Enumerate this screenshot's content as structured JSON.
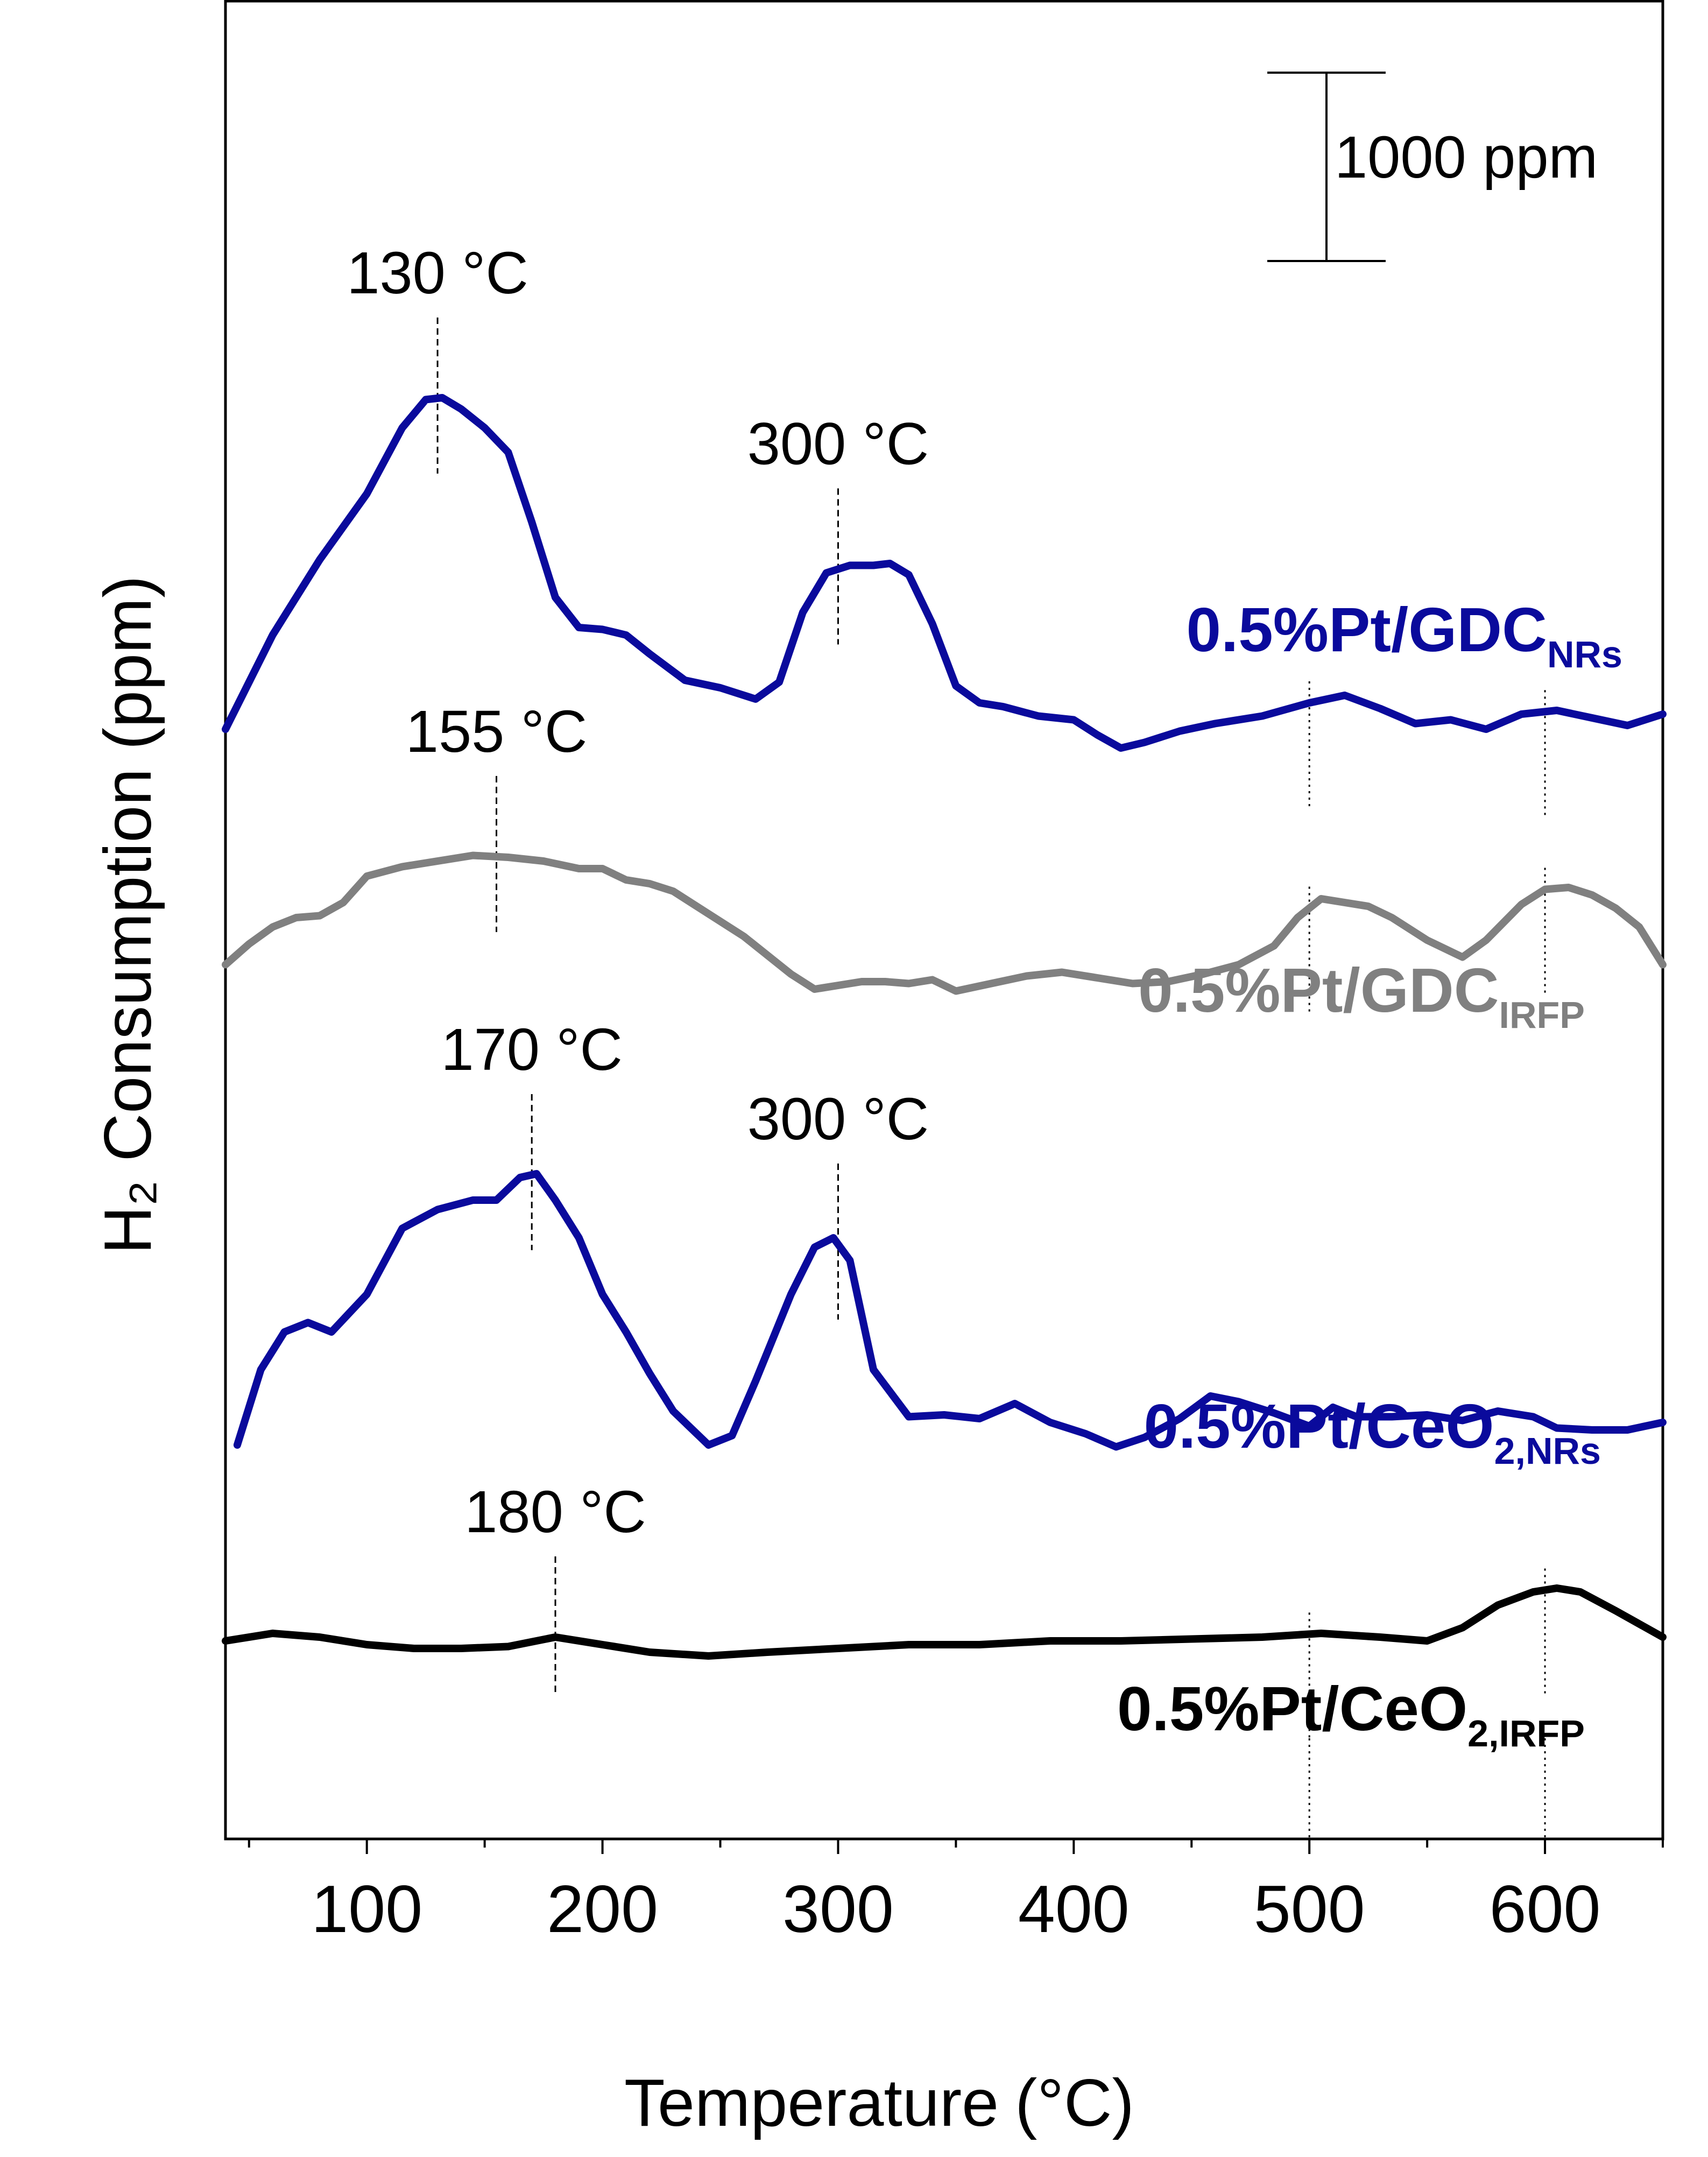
{
  "chart_data": {
    "type": "line",
    "title": "",
    "xlabel": "Temperature",
    "xlabel_unit": "(°C)",
    "ylabel": "H₂ Consumption (ppm)",
    "xlim": [
      40,
      650
    ],
    "x_ticks": [
      100,
      200,
      300,
      400,
      500,
      600
    ],
    "x_tick_labels": [
      "100",
      "200",
      "300",
      "400",
      "500",
      "600"
    ],
    "y_tick_labels": "none",
    "grid": false,
    "scale_bar": {
      "label": "1000 ppm",
      "value_ppm": 1000
    },
    "series": [
      {
        "name": "0.5%Pt/GDC",
        "subscript": "NRs",
        "color": "#0a0a9c",
        "offset_ppm": 5700,
        "x": [
          40,
          60,
          80,
          100,
          115,
          125,
          132,
          140,
          150,
          160,
          170,
          180,
          190,
          200,
          210,
          220,
          235,
          250,
          265,
          275,
          285,
          295,
          305,
          315,
          322,
          330,
          340,
          350,
          360,
          370,
          385,
          400,
          410,
          420,
          430,
          445,
          460,
          480,
          500,
          515,
          530,
          545,
          560,
          575,
          590,
          605,
          620,
          635,
          650
        ],
        "values": [
          0,
          500,
          900,
          1250,
          1600,
          1750,
          1760,
          1700,
          1600,
          1470,
          1100,
          700,
          540,
          530,
          500,
          400,
          260,
          220,
          160,
          250,
          620,
          830,
          870,
          870,
          880,
          820,
          560,
          230,
          140,
          120,
          70,
          50,
          -30,
          -100,
          -70,
          -10,
          30,
          70,
          140,
          180,
          110,
          30,
          50,
          0,
          80,
          100,
          60,
          20,
          80
        ]
      },
      {
        "name": "0.5%Pt/GDC",
        "subscript": "IRFP",
        "color": "#808080",
        "offset_ppm": 4400,
        "x": [
          40,
          50,
          60,
          70,
          80,
          90,
          100,
          115,
          130,
          145,
          160,
          175,
          190,
          200,
          210,
          220,
          230,
          245,
          260,
          270,
          280,
          290,
          300,
          310,
          320,
          330,
          340,
          350,
          365,
          380,
          395,
          410,
          425,
          440,
          455,
          470,
          485,
          495,
          505,
          515,
          525,
          535,
          550,
          565,
          575,
          590,
          600,
          610,
          620,
          630,
          640,
          650
        ],
        "values": [
          50,
          160,
          250,
          300,
          310,
          380,
          520,
          570,
          600,
          630,
          620,
          600,
          560,
          560,
          500,
          480,
          440,
          320,
          200,
          100,
          0,
          -80,
          -60,
          -40,
          -40,
          -50,
          -30,
          -90,
          -50,
          -10,
          10,
          -20,
          -50,
          -40,
          0,
          50,
          150,
          300,
          400,
          380,
          360,
          300,
          180,
          90,
          180,
          370,
          450,
          460,
          420,
          350,
          250,
          50
        ]
      },
      {
        "name": "0.5%Pt/CeO",
        "subscript": "2,NRs",
        "color": "#0a0a9c",
        "offset_ppm": 1900,
        "x": [
          45,
          55,
          65,
          75,
          85,
          100,
          115,
          130,
          145,
          155,
          165,
          172,
          180,
          190,
          200,
          210,
          220,
          230,
          245,
          255,
          265,
          280,
          290,
          298,
          305,
          315,
          330,
          345,
          360,
          375,
          390,
          405,
          418,
          430,
          445,
          458,
          470,
          485,
          500,
          510,
          520,
          535,
          550,
          565,
          580,
          595,
          605,
          620,
          635,
          650
        ],
        "values": [
          0,
          400,
          600,
          650,
          600,
          800,
          1150,
          1250,
          1300,
          1300,
          1420,
          1440,
          1300,
          1100,
          800,
          600,
          380,
          180,
          0,
          50,
          340,
          800,
          1050,
          1100,
          980,
          400,
          150,
          160,
          140,
          220,
          120,
          60,
          -10,
          40,
          140,
          260,
          230,
          170,
          100,
          200,
          150,
          150,
          160,
          130,
          180,
          150,
          90,
          80,
          80,
          120
        ]
      },
      {
        "name": "0.5%Pt/CeO",
        "subscript": "2,IRFP",
        "color": "#000000",
        "offset_ppm": 800,
        "x": [
          40,
          60,
          80,
          100,
          120,
          140,
          160,
          180,
          200,
          220,
          245,
          270,
          300,
          330,
          360,
          390,
          420,
          450,
          480,
          505,
          530,
          550,
          565,
          580,
          595,
          605,
          615,
          630,
          650
        ],
        "values": [
          60,
          100,
          80,
          40,
          20,
          20,
          30,
          80,
          40,
          0,
          -20,
          0,
          20,
          40,
          40,
          60,
          60,
          70,
          80,
          100,
          80,
          60,
          130,
          250,
          320,
          340,
          320,
          220,
          80
        ]
      }
    ],
    "annotations": [
      {
        "text": "130 °C",
        "x": 130
      },
      {
        "text": "300 °C",
        "x": 300
      },
      {
        "text": "155 °C",
        "x": 155
      },
      {
        "text": "170 °C",
        "x": 170
      },
      {
        "text": "300 °C",
        "x": 300
      },
      {
        "text": "180 °C",
        "x": 180
      }
    ],
    "reference_temperatures": [
      500,
      600
    ]
  }
}
